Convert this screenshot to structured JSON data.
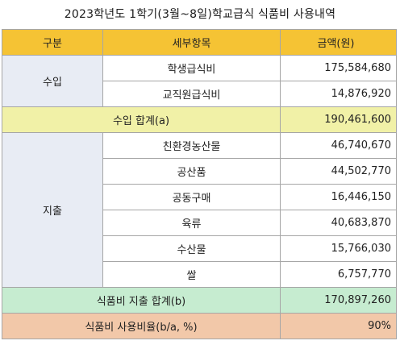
{
  "title": "2023학년도 1학기(3월~8일)학교급식 식품비 사용내역",
  "header": {
    "category": "구분",
    "item": "세부항목",
    "amount": "금액(원)"
  },
  "income": {
    "category": "수입",
    "rows": [
      {
        "item": "학생급식비",
        "amount": "175,584,680"
      },
      {
        "item": "교직원급식비",
        "amount": "14,876,920"
      }
    ],
    "total_label": "수입 합계(a)",
    "total_amount": "190,461,600"
  },
  "expense": {
    "category": "지출",
    "rows": [
      {
        "item": "친환경농산물",
        "amount": "46,740,670"
      },
      {
        "item": "공산품",
        "amount": "44,502,770"
      },
      {
        "item": "공동구매",
        "amount": "16,446,150"
      },
      {
        "item": "육류",
        "amount": "40,683,870"
      },
      {
        "item": "수산물",
        "amount": "15,766,030"
      },
      {
        "item": "쌀",
        "amount": "6,757,770"
      }
    ],
    "total_label": "식품비 지출 합계(b)",
    "total_amount": "170,897,260"
  },
  "ratio": {
    "label": "식품비 사용비율(b/a, %)",
    "value": "90%"
  },
  "colors": {
    "header": "#f5c334",
    "category": "#e8ecf4",
    "income_total": "#f1f1a7",
    "expense_total": "#c6ecd0",
    "ratio": "#f2c8a9"
  }
}
